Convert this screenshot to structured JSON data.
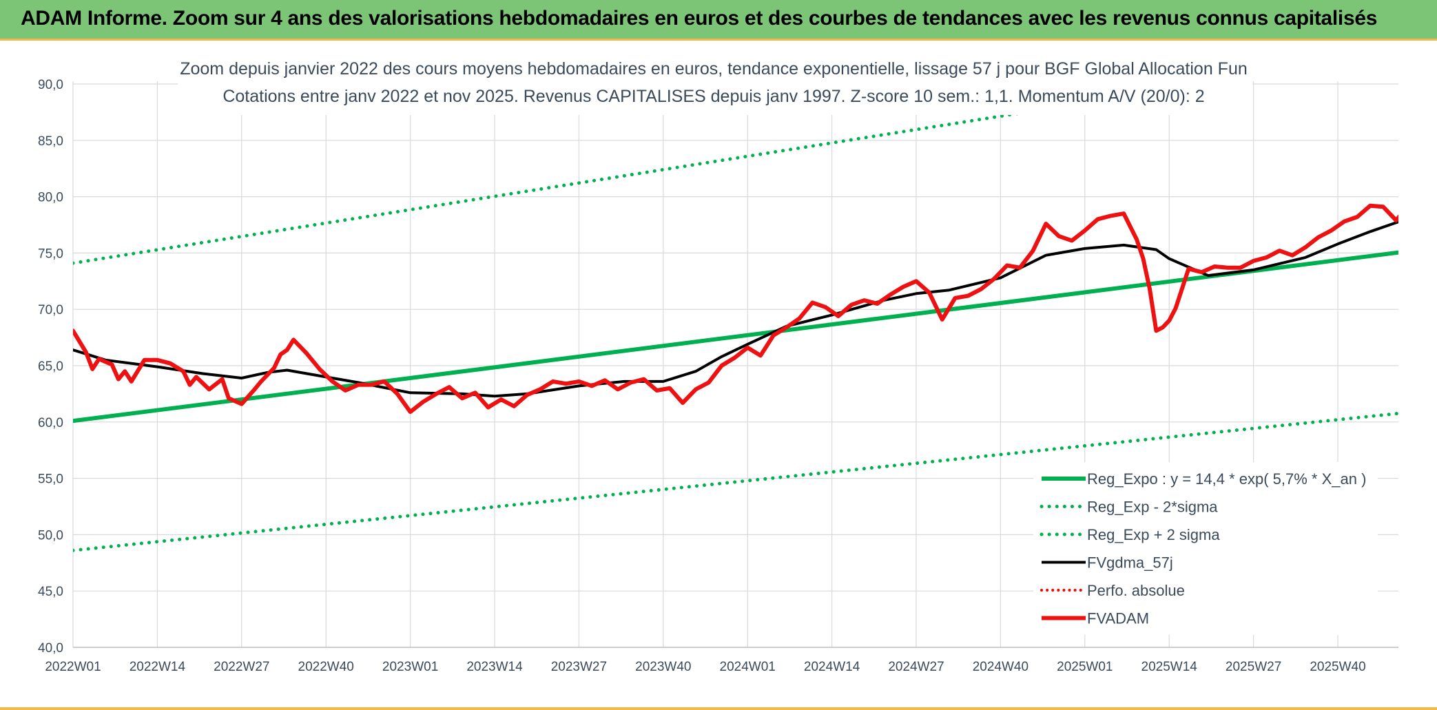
{
  "banner": {
    "title": "ADAM Informe. Zoom sur 4 ans des valorisations hebdomadaires en euros et des courbes de tendances avec les revenus connus capitalisés"
  },
  "colors": {
    "banner_bg": "#7cc576",
    "accent": "#f2b84a",
    "reg_expo": "#00b050",
    "reg_band": "#00b050",
    "fvgdma": "#000000",
    "perfo": "#ff0000",
    "fvadam": "#ee1111"
  },
  "chart_data": {
    "type": "line",
    "title_line1": "Zoom depuis janvier 2022 des cours moyens hebdomadaires en euros, tendance exponentielle, lissage 57 j pour BGF Global Allocation Fun",
    "title_line2": "Cotations entre janv 2022 et nov 2025. Revenus CAPITALISES depuis janv 1997. Z-score 10 sem.: 1,1. Momentum A/V (20/0): 2",
    "ylim": [
      40,
      90
    ],
    "y_ticks": [
      "40,0",
      "45,0",
      "50,0",
      "55,0",
      "60,0",
      "65,0",
      "70,0",
      "75,0",
      "80,0",
      "85,0",
      "90,0"
    ],
    "x_ticks": [
      "2022W01",
      "2022W14",
      "2022W27",
      "2022W40",
      "2023W01",
      "2023W14",
      "2023W27",
      "2023W40",
      "2024W01",
      "2024W14",
      "2024W27",
      "2024W40",
      "2025W01",
      "2025W14",
      "2025W27",
      "2025W40"
    ],
    "x_tick_index": [
      0,
      13,
      26,
      39,
      52,
      65,
      78,
      91,
      104,
      117,
      130,
      143,
      156,
      169,
      182,
      195
    ],
    "x_range_weeks": [
      0,
      205
    ],
    "grid": true,
    "legend_position": "bottom-right",
    "series": [
      {
        "name": "Reg_Expo : y = 14,4 * exp( 5,7% *  X_an )",
        "style": "solid-thick",
        "weeks": [
          0,
          205
        ],
        "values": [
          60.1,
          75.1
        ]
      },
      {
        "name": "Reg_Exp - 2*sigma",
        "style": "dotted",
        "weeks": [
          0,
          205
        ],
        "values": [
          48.6,
          60.8
        ]
      },
      {
        "name": "Reg_Exp + 2 sigma",
        "style": "dotted",
        "weeks": [
          0,
          205
        ],
        "values": [
          74.1,
          92.8
        ]
      },
      {
        "name": "FVgdma_57j",
        "style": "solid",
        "weeks": [
          0,
          5,
          13,
          20,
          26,
          30,
          33,
          39,
          44,
          52,
          60,
          65,
          70,
          78,
          85,
          91,
          96,
          100,
          104,
          110,
          117,
          125,
          130,
          135,
          143,
          150,
          156,
          162,
          167,
          169,
          175,
          182,
          190,
          195,
          200,
          205
        ],
        "values": [
          66.4,
          65.5,
          64.9,
          64.3,
          63.9,
          64.4,
          64.6,
          64.0,
          63.5,
          62.6,
          62.5,
          62.3,
          62.5,
          63.2,
          63.6,
          63.6,
          64.5,
          65.8,
          66.9,
          68.5,
          69.5,
          70.8,
          71.4,
          71.7,
          72.8,
          74.8,
          75.4,
          75.7,
          75.3,
          74.5,
          73.0,
          73.5,
          74.6,
          75.8,
          76.9,
          77.9
        ]
      },
      {
        "name": "Perfo. absolue",
        "style": "dotted",
        "weeks": [],
        "values": []
      },
      {
        "name": "FVADAM",
        "style": "solid-thick",
        "weeks": [
          0,
          2,
          3,
          4,
          6,
          7,
          8,
          9,
          11,
          13,
          15,
          17,
          18,
          19,
          21,
          23,
          24,
          26,
          28,
          29,
          31,
          32,
          33,
          34,
          36,
          38,
          40,
          42,
          44,
          46,
          48,
          50,
          52,
          54,
          56,
          58,
          60,
          62,
          64,
          66,
          68,
          70,
          72,
          74,
          76,
          78,
          80,
          82,
          84,
          86,
          88,
          90,
          92,
          94,
          96,
          98,
          100,
          102,
          104,
          106,
          108,
          110,
          112,
          114,
          116,
          118,
          120,
          122,
          124,
          126,
          128,
          130,
          132,
          134,
          136,
          138,
          140,
          142,
          144,
          146,
          148,
          150,
          152,
          154,
          156,
          158,
          160,
          162,
          164,
          165,
          166,
          167,
          168,
          169,
          170,
          172,
          174,
          176,
          178,
          180,
          182,
          184,
          186,
          188,
          190,
          192,
          194,
          196,
          198,
          200,
          202,
          204,
          205
        ],
        "values": [
          68.1,
          66.2,
          64.7,
          65.6,
          65.1,
          63.8,
          64.5,
          63.6,
          65.5,
          65.5,
          65.2,
          64.5,
          63.3,
          64.0,
          62.9,
          63.8,
          62.1,
          61.6,
          62.9,
          63.6,
          64.8,
          66.0,
          66.4,
          67.3,
          66.1,
          64.7,
          63.6,
          62.8,
          63.3,
          63.3,
          63.6,
          62.5,
          60.9,
          61.8,
          62.5,
          63.1,
          62.1,
          62.6,
          61.3,
          62.0,
          61.4,
          62.4,
          62.9,
          63.6,
          63.4,
          63.6,
          63.2,
          63.7,
          62.9,
          63.5,
          63.8,
          62.8,
          63.0,
          61.7,
          62.9,
          63.5,
          65.0,
          65.7,
          66.6,
          65.9,
          67.7,
          68.4,
          69.2,
          70.6,
          70.2,
          69.4,
          70.4,
          70.8,
          70.5,
          71.3,
          72.0,
          72.5,
          71.5,
          69.1,
          71.0,
          71.2,
          71.8,
          72.7,
          73.9,
          73.7,
          75.2,
          77.6,
          76.5,
          76.1,
          77.0,
          78.0,
          78.3,
          78.5,
          76.2,
          74.5,
          71.8,
          68.1,
          68.4,
          69.0,
          70.1,
          73.6,
          73.3,
          73.8,
          73.7,
          73.7,
          74.3,
          74.6,
          75.2,
          74.8,
          75.5,
          76.4,
          77.0,
          77.8,
          78.2,
          79.2,
          79.1,
          77.9,
          78.6
        ]
      }
    ]
  }
}
